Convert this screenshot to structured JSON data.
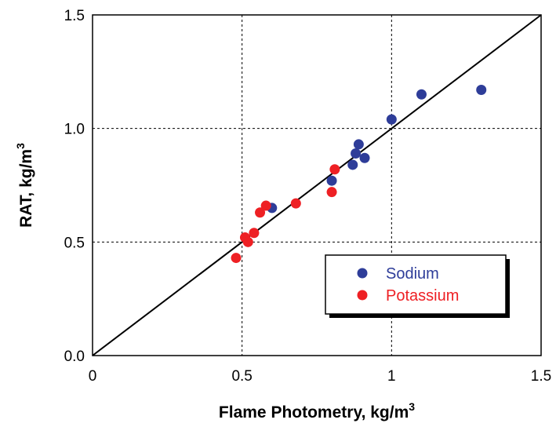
{
  "chart_data": {
    "type": "scatter",
    "title": "",
    "xlabel": {
      "main": "Flame Photometry, kg/m",
      "sup": "3"
    },
    "ylabel": {
      "main": "RAT, kg/m",
      "sup": "3"
    },
    "xlim": [
      0,
      1.5
    ],
    "ylim": [
      0,
      1.5
    ],
    "x_ticks": [
      "0",
      "0.5",
      "1",
      "1.5"
    ],
    "y_ticks": [
      "0.0",
      "0.5",
      "1.0",
      "1.5"
    ],
    "grid": "dashed",
    "legend_position": "bottom-right",
    "reference_line": {
      "label": "",
      "points": [
        [
          0,
          0
        ],
        [
          1.5,
          1.5
        ]
      ]
    },
    "series": [
      {
        "name": "Sodium",
        "color": "#2e3d99",
        "points": [
          [
            0.6,
            0.65
          ],
          [
            0.8,
            0.77
          ],
          [
            0.87,
            0.84
          ],
          [
            0.88,
            0.89
          ],
          [
            0.89,
            0.93
          ],
          [
            0.91,
            0.87
          ],
          [
            1.0,
            1.04
          ],
          [
            1.1,
            1.15
          ],
          [
            1.3,
            1.17
          ]
        ]
      },
      {
        "name": "Potassium",
        "color": "#ee2024",
        "points": [
          [
            0.48,
            0.43
          ],
          [
            0.51,
            0.52
          ],
          [
            0.52,
            0.5
          ],
          [
            0.54,
            0.54
          ],
          [
            0.56,
            0.63
          ],
          [
            0.58,
            0.66
          ],
          [
            0.68,
            0.67
          ],
          [
            0.8,
            0.72
          ],
          [
            0.81,
            0.82
          ]
        ]
      }
    ]
  }
}
